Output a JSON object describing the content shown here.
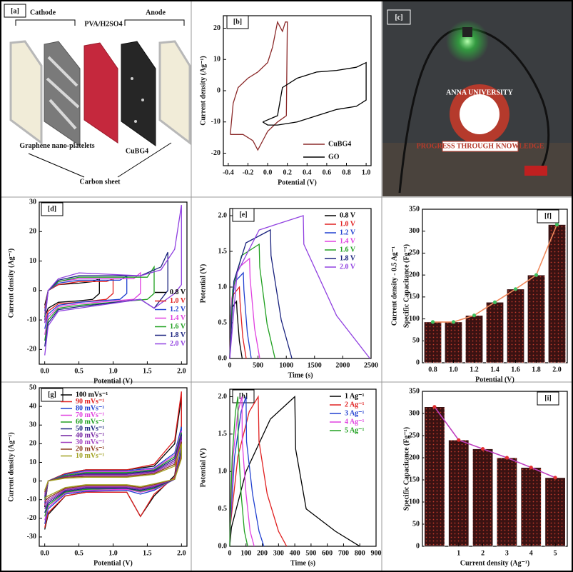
{
  "diagram_a": {
    "panel_label": "[a]",
    "cathode": "Cathode",
    "electrolyte": "PVA/H2SO4",
    "anode": "Anode",
    "left_material": "Graphene nano-platelets",
    "right_material": "CuBG4",
    "substrate": "Carbon sheet"
  },
  "photo_c": {
    "panel_label": "[c]",
    "logo_name": "ANNA UNIVERSITY",
    "logo_motto": "PROGRESS THROUGH KNOWLEDGE"
  },
  "chart_data": [
    {
      "type": "line",
      "panel_label": "[b]",
      "xlabel": "Potential (V)",
      "ylabel": "Current density (Ag⁻¹)",
      "xlim": [
        -0.45,
        1.05
      ],
      "ylim": [
        -24,
        24
      ],
      "xticks": [
        -0.4,
        -0.2,
        {
          "value": 0,
          "label": "0.0"
        },
        0.2,
        0.4,
        0.6,
        0.8,
        {
          "value": 1,
          "label": "1.0"
        }
      ],
      "yticks": [
        -20,
        -10,
        0,
        10,
        20
      ],
      "legend": "lower right",
      "series": [
        {
          "name": "CuBG4",
          "color": "#8b2a2a",
          "x": [
            -0.38,
            -0.35,
            -0.3,
            -0.2,
            -0.1,
            0.0,
            0.05,
            0.1,
            0.15,
            0.18,
            0.2,
            0.19,
            0.1,
            0.0,
            -0.05,
            -0.1,
            -0.15,
            -0.25,
            -0.38
          ],
          "values": [
            -14,
            -4,
            1,
            4,
            6,
            9,
            14,
            22,
            19,
            22,
            22,
            -8,
            -10,
            -13,
            -16,
            -19,
            -16,
            -14,
            -14
          ]
        },
        {
          "name": "GO",
          "color": "#000000",
          "x": [
            -0.05,
            0.1,
            0.15,
            0.3,
            0.5,
            0.7,
            0.9,
            1.0,
            1.0,
            0.9,
            0.7,
            0.5,
            0.3,
            0.1,
            0.0,
            -0.05
          ],
          "values": [
            -10,
            -8,
            1,
            4,
            6,
            6.5,
            7.5,
            9,
            -3,
            -5,
            -6,
            -8,
            -10,
            -11,
            -11,
            -10
          ]
        }
      ]
    },
    {
      "type": "line",
      "panel_label": "[d]",
      "xlabel": "Potential (V)",
      "ylabel": "Current density (Ag⁻¹)",
      "xlim": [
        -0.08,
        2.08
      ],
      "ylim": [
        -25,
        30
      ],
      "xticks": [
        {
          "value": 0,
          "label": "0.0"
        },
        0.5,
        {
          "value": 1,
          "label": "1.0"
        },
        1.5,
        {
          "value": 2,
          "label": "2.0"
        }
      ],
      "yticks": [
        -20,
        -10,
        0,
        10,
        20,
        30
      ],
      "legend": "center right",
      "series": [
        {
          "name": "0.8 V",
          "color": "#000000",
          "x": [
            0,
            0.05,
            0.2,
            0.5,
            0.7,
            0.8,
            0.8,
            0.7,
            0.5,
            0.2,
            0.05,
            0
          ],
          "values": [
            -5,
            0,
            2,
            2.5,
            3,
            4,
            -1,
            -3,
            -3.5,
            -4,
            -6,
            -9
          ]
        },
        {
          "name": "1.0 V",
          "color": "#e02020",
          "x": [
            0,
            0.05,
            0.2,
            0.5,
            0.9,
            1.0,
            1.0,
            0.9,
            0.5,
            0.2,
            0.05,
            0
          ],
          "values": [
            -6,
            0,
            2,
            3,
            3,
            4,
            -1,
            -3,
            -4,
            -4.5,
            -7,
            -11
          ]
        },
        {
          "name": "1.2 V",
          "color": "#2040d0",
          "x": [
            0,
            0.05,
            0.2,
            0.5,
            1.1,
            1.2,
            1.2,
            1.1,
            0.5,
            0.2,
            0.05,
            0
          ],
          "values": [
            -7,
            0,
            2.5,
            3.5,
            3.5,
            5,
            -1,
            -3,
            -4,
            -5,
            -8,
            -13
          ]
        },
        {
          "name": "1.4 V",
          "color": "#e040e0",
          "x": [
            0,
            0.05,
            0.2,
            0.5,
            1.3,
            1.4,
            1.4,
            1.3,
            0.5,
            0.2,
            0.05,
            0
          ],
          "values": [
            -8,
            0,
            3,
            4,
            4,
            6,
            -1,
            -3,
            -4.5,
            -5.5,
            -9,
            -15
          ]
        },
        {
          "name": "1.6 V",
          "color": "#20a020",
          "x": [
            0,
            0.05,
            0.2,
            0.5,
            1.5,
            1.6,
            1.6,
            1.5,
            0.5,
            0.2,
            0.05,
            0
          ],
          "values": [
            -9,
            0,
            3,
            4.5,
            4.5,
            8,
            -1,
            -3,
            -5,
            -6,
            -10,
            -17
          ]
        },
        {
          "name": "1.8 V",
          "color": "#1a237e",
          "x": [
            0,
            0.05,
            0.2,
            0.5,
            1.4,
            1.7,
            1.8,
            1.8,
            1.6,
            1.4,
            0.5,
            0.2,
            0.05,
            0
          ],
          "values": [
            -10,
            0,
            3.5,
            5,
            5,
            8,
            13,
            0,
            -6,
            -3,
            -5.5,
            -6.5,
            -11,
            -19
          ]
        },
        {
          "name": "2.0 V",
          "color": "#9040e0",
          "x": [
            0,
            0.05,
            0.2,
            0.5,
            1.4,
            1.7,
            1.9,
            2.0,
            2.0,
            1.9,
            1.6,
            1.4,
            0.5,
            0.2,
            0.05,
            0
          ],
          "values": [
            -11,
            0,
            4,
            6,
            5,
            7,
            14,
            29,
            2,
            -1,
            -6,
            -3,
            -6,
            -7,
            -12,
            -22
          ]
        }
      ]
    },
    {
      "type": "line",
      "panel_label": "[e]",
      "xlabel": "Time (s)",
      "ylabel": "Potential (V)",
      "xlim": [
        0,
        2500
      ],
      "ylim": [
        0,
        2.1
      ],
      "xticks": [
        0,
        500,
        1000,
        1500,
        2000,
        2500
      ],
      "yticks": [
        {
          "value": 0,
          "label": "0.0"
        },
        0.5,
        {
          "value": 1,
          "label": "1.0"
        },
        1.5,
        {
          "value": 2,
          "label": "2.0"
        }
      ],
      "legend": "upper right",
      "series": [
        {
          "name": "0.8 V",
          "color": "#000000",
          "x": [
            0,
            12,
            48,
            120,
            130,
            170,
            220
          ],
          "values": [
            0,
            0.48,
            0.72,
            0.8,
            0.64,
            0.24,
            0
          ]
        },
        {
          "name": "1.0 V",
          "color": "#e02020",
          "x": [
            0,
            17,
            68,
            170,
            180,
            230,
            290
          ],
          "values": [
            0,
            0.6,
            0.9,
            1.0,
            0.8,
            0.3,
            0
          ]
        },
        {
          "name": "1.2 V",
          "color": "#2040d0",
          "x": [
            0,
            24,
            96,
            240,
            250,
            310,
            380
          ],
          "values": [
            0,
            0.72,
            1.08,
            1.2,
            0.96,
            0.36,
            0
          ]
        },
        {
          "name": "1.4 V",
          "color": "#e040e0",
          "x": [
            0,
            35,
            140,
            350,
            360,
            440,
            530
          ],
          "values": [
            0,
            0.84,
            1.26,
            1.4,
            1.12,
            0.42,
            0
          ]
        },
        {
          "name": "1.6 V",
          "color": "#20a020",
          "x": [
            0,
            52,
            208,
            520,
            530,
            660,
            800
          ],
          "values": [
            0,
            0.96,
            1.44,
            1.6,
            1.28,
            0.48,
            0
          ]
        },
        {
          "name": "1.8 V",
          "color": "#1a237e",
          "x": [
            0,
            72,
            288,
            720,
            730,
            910,
            1100
          ],
          "values": [
            0,
            1.08,
            1.62,
            1.8,
            1.44,
            0.54,
            0
          ]
        },
        {
          "name": "2.0 V",
          "color": "#9040e0",
          "x": [
            0,
            130,
            520,
            1300,
            1310,
            1890,
            2480
          ],
          "values": [
            0,
            1.2,
            1.8,
            2.0,
            1.6,
            0.6,
            0
          ]
        }
      ]
    },
    {
      "type": "bar",
      "panel_label": "[f]",
      "xlabel": "Potential (V)",
      "ylabel": "Specific Capacitance (Fg⁻¹)",
      "annotation": "Current density - 0.5 Ag⁻¹",
      "categories": [
        "0.8",
        "1.0",
        "1.2",
        "1.4",
        "1.6",
        "1.8",
        "2.0"
      ],
      "values": [
        93,
        93,
        108,
        138,
        168,
        200,
        315
      ],
      "ylim": [
        0,
        350
      ],
      "yticks": [
        0,
        50,
        100,
        150,
        200,
        250,
        300,
        350
      ],
      "color": "#3a1212",
      "line_color": "#f08a5d",
      "marker_color": "#40c060"
    },
    {
      "type": "line",
      "panel_label": "[g]",
      "xlabel": "Potential (V)",
      "ylabel": "Current density (Ag⁻¹)",
      "xlim": [
        -0.08,
        2.08
      ],
      "ylim": [
        -35,
        50
      ],
      "xticks": [
        {
          "value": 0,
          "label": "0.0"
        },
        0.5,
        {
          "value": 1,
          "label": "1.0"
        },
        1.5,
        {
          "value": 2,
          "label": "2.0"
        }
      ],
      "yticks": [
        -30,
        -20,
        -10,
        0,
        10,
        20,
        30,
        40,
        50
      ],
      "legend": "upper left",
      "x": [
        0,
        0.05,
        0.3,
        0.6,
        1.2,
        1.6,
        1.9,
        2.0,
        2.0,
        1.9,
        1.6,
        1.4,
        1.2,
        0.6,
        0.3,
        0.05,
        0
      ],
      "series": [
        {
          "name": "100 mVs⁻¹",
          "color": "#000000",
          "values": [
            -14,
            0,
            4,
            6,
            6,
            8,
            20,
            45,
            30,
            3,
            -8,
            -19,
            -6,
            -6,
            -8,
            -18,
            -26
          ]
        },
        {
          "name": "90 mVs⁻¹",
          "color": "#e02020",
          "values": [
            -13,
            0,
            4,
            6,
            6,
            9,
            22,
            48,
            28,
            2,
            -7,
            -19,
            -6,
            -6,
            -8,
            -17,
            -25
          ]
        },
        {
          "name": "80 mVs⁻¹",
          "color": "#2040d0",
          "values": [
            -12,
            0,
            3.5,
            5.5,
            5.5,
            7,
            15,
            29,
            20,
            1,
            -5,
            -7,
            -5,
            -5.5,
            -7,
            -15,
            -23
          ]
        },
        {
          "name": "70 mVs⁻¹",
          "color": "#e040e0",
          "values": [
            -11,
            0,
            3,
            5,
            5,
            6.5,
            14,
            27,
            18,
            1,
            -4.5,
            -6,
            -4.5,
            -5,
            -6.5,
            -14,
            -21
          ]
        },
        {
          "name": "60 mVs⁻¹",
          "color": "#20a020",
          "values": [
            -10,
            0,
            3,
            4.5,
            4.5,
            6,
            13,
            26,
            17,
            1,
            -4,
            -5.5,
            -4,
            -4.5,
            -6,
            -13,
            -19
          ]
        },
        {
          "name": "50 mVs⁻¹",
          "color": "#1a237e",
          "values": [
            -9,
            0,
            2.5,
            4,
            4,
            5.5,
            12,
            25,
            16,
            1,
            -3.5,
            -5,
            -4,
            -4,
            -5.5,
            -12,
            -17
          ]
        },
        {
          "name": "40 mVs⁻¹",
          "color": "#7020a0",
          "values": [
            -8,
            0,
            2.5,
            3.5,
            3.5,
            5,
            11,
            24,
            15,
            1,
            -3,
            -4.5,
            -3.5,
            -3.5,
            -5,
            -11,
            -15
          ]
        },
        {
          "name": "30 mVs⁻¹",
          "color": "#a040c0",
          "values": [
            -7,
            0,
            2,
            3,
            3,
            4.5,
            10,
            22,
            14,
            1,
            -2.5,
            -4,
            -3,
            -3,
            -4.5,
            -10,
            -13
          ]
        },
        {
          "name": "20 mVs⁻¹",
          "color": "#8b3a1a",
          "values": [
            -6,
            0,
            2,
            2.5,
            2.5,
            4,
            9,
            21,
            13,
            1,
            -2,
            -3.5,
            -2.5,
            -2.5,
            -4,
            -9,
            -11
          ]
        },
        {
          "name": "10 mVs⁻¹",
          "color": "#a0a020",
          "values": [
            -5,
            0,
            1.5,
            2,
            2,
            3.5,
            8,
            20,
            12,
            1,
            -1.5,
            -3,
            -2,
            -2,
            -3.5,
            -8,
            -9
          ]
        }
      ]
    },
    {
      "type": "line",
      "panel_label": "[h]",
      "xlabel": "Time (s)",
      "ylabel": "Potential (V)",
      "xlim": [
        0,
        900
      ],
      "ylim": [
        0,
        2.1
      ],
      "xticks": [
        0,
        100,
        200,
        300,
        400,
        500,
        600,
        700,
        800,
        900
      ],
      "yticks": [
        {
          "value": 0,
          "label": "0.0"
        },
        0.5,
        {
          "value": 1,
          "label": "1.0"
        },
        1.5,
        {
          "value": 2,
          "label": "2.0"
        }
      ],
      "legend": "upper right",
      "series": [
        {
          "name": "1 Ag⁻¹",
          "color": "#000000",
          "x": [
            0,
            10,
            100,
            250,
            400,
            405,
            470,
            650,
            800
          ],
          "values": [
            0,
            0.25,
            1.0,
            1.7,
            2.0,
            1.3,
            0.5,
            0.2,
            0
          ]
        },
        {
          "name": "2 Ag⁻¹",
          "color": "#e02020",
          "x": [
            0,
            5,
            50,
            120,
            175,
            180,
            230,
            300,
            350
          ],
          "values": [
            0,
            0.3,
            1.2,
            1.8,
            2.0,
            1.4,
            0.7,
            0.2,
            0
          ]
        },
        {
          "name": "3 Ag⁻¹",
          "color": "#2040d0",
          "x": [
            0,
            4,
            30,
            70,
            100,
            103,
            140,
            180,
            210
          ],
          "values": [
            0,
            0.3,
            1.2,
            1.8,
            2.0,
            1.4,
            0.7,
            0.2,
            0
          ]
        },
        {
          "name": "4 Ag⁻¹",
          "color": "#e040e0",
          "x": [
            0,
            3,
            20,
            50,
            75,
            77,
            100,
            125,
            150
          ],
          "values": [
            0,
            0.3,
            1.2,
            1.8,
            2.0,
            1.4,
            0.7,
            0.2,
            0
          ]
        },
        {
          "name": "5 Ag⁻¹",
          "color": "#20a020",
          "x": [
            0,
            2,
            15,
            35,
            50,
            52,
            70,
            90,
            110
          ],
          "values": [
            0,
            0.3,
            1.2,
            1.8,
            2.0,
            1.4,
            0.7,
            0.2,
            0
          ]
        }
      ]
    },
    {
      "type": "bar",
      "panel_label": "[i]",
      "xlabel": "Current density (Ag⁻¹)",
      "ylabel": "Specific Capacitance (Fg⁻¹)",
      "categories": [
        null,
        "1",
        "2",
        "3",
        "4",
        "5"
      ],
      "values": [
        315,
        240,
        220,
        200,
        178,
        155
      ],
      "ylim": [
        0,
        350
      ],
      "yticks": [
        0,
        50,
        100,
        150,
        200,
        250,
        300,
        350
      ],
      "color": "#3a1212",
      "line_color": "#c040c0",
      "marker_color": "#e03030"
    }
  ]
}
